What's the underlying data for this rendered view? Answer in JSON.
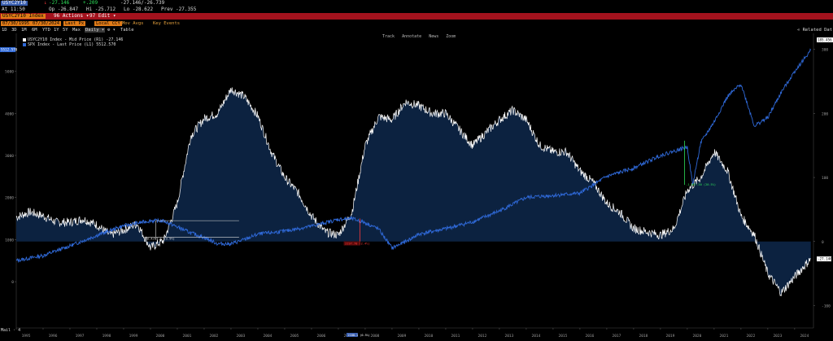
{
  "header": {
    "ticker": "USYC2Y10",
    "last_arrow": "↓",
    "last": "-27.146",
    "change": "+.209",
    "bid_ask": "-27.146/-26.739",
    "time": "At 11:50",
    "open": "Op -26.847",
    "high": "Hi -25.712",
    "low": "Lo -28.622",
    "prev": "Prev -27.355"
  },
  "actions_bar": {
    "index_tag": "USYC2Y10 Index",
    "actions": "96 Actions ▾",
    "edit": "97 Edit ▾"
  },
  "date_bar": {
    "start_date": "07/30/1995",
    "end_date": "07/30/2024",
    "last_px": "Last Px",
    "local_ccy": "Local CCY",
    "mov_avgs": "Mov Avgs",
    "key_events": "Key Events"
  },
  "range_bar": {
    "ranges": [
      "1D",
      "3D",
      "1M",
      "6M",
      "YTD",
      "1Y",
      "5Y",
      "Max",
      "Daily ▾"
    ],
    "selected": "Daily ▾",
    "table": "Table",
    "related": "« Related Dat"
  },
  "toolbar": {
    "track": "Track",
    "annotate": "Annotate",
    "news": "News",
    "zoom": "Zoom"
  },
  "legend": {
    "series1": "USYC2Y10 Index - Mid Price (R1)   -27.146",
    "series2": "SPX Index - Last Price (L1)          5512.570"
  },
  "annotations": {
    "a1": "40.4/85.1 (3.9%)",
    "a2": "2197.70 (2.4%)",
    "a3": "2100.1 (0.5%)",
    "a4": "-1,097.30 (20.5%)"
  },
  "bottom_tag": "Mail  · 4",
  "colors": {
    "spread_fill": "#0c2240",
    "spread_line": "#ffffff",
    "spx_line": "#2f69d8",
    "grid": "#1a1a1a",
    "axis_text": "#9a9a9a",
    "green": "#2ee05a",
    "red": "#ff3b3b",
    "orange": "#e07b18"
  },
  "chart_data": {
    "type": "line",
    "x_labels": [
      "1995",
      "1996",
      "1997",
      "1998",
      "1999",
      "2000",
      "2001",
      "2002",
      "2003",
      "2004",
      "2005",
      "2006",
      "2007",
      "2008",
      "2009",
      "2010",
      "2011",
      "2012",
      "2013",
      "2014",
      "2015",
      "2016",
      "2017",
      "2018",
      "2019",
      "2020",
      "2021",
      "2022",
      "2023",
      "2024"
    ],
    "left_axis_ticks": [
      "5000",
      "4000",
      "3000",
      "2000",
      "1000",
      "0"
    ],
    "left_axis_top_label": "5512.570",
    "right_axis_ticks": [
      "300",
      "200",
      "100",
      "0",
      "-100"
    ],
    "right_axis_top_label": "185.456",
    "right_axis_last_label": "-27.146",
    "series": [
      {
        "name": "USYC2Y10 Index - Mid Price (R1)",
        "axis": "right",
        "x": [
          1995.0,
          1995.5,
          1996.0,
          1996.5,
          1997.0,
          1997.5,
          1998.0,
          1998.5,
          1999.0,
          1999.5,
          2000.0,
          2000.5,
          2001.0,
          2001.5,
          2002.0,
          2002.5,
          2003.0,
          2003.5,
          2004.0,
          2004.5,
          2005.0,
          2005.5,
          2006.0,
          2006.5,
          2007.0,
          2007.5,
          2008.0,
          2008.5,
          2009.0,
          2009.5,
          2010.0,
          2010.5,
          2011.0,
          2011.5,
          2012.0,
          2012.5,
          2013.0,
          2013.5,
          2014.0,
          2014.5,
          2015.0,
          2015.5,
          2016.0,
          2016.5,
          2017.0,
          2017.5,
          2018.0,
          2018.5,
          2019.0,
          2019.5,
          2020.0,
          2020.5,
          2021.0,
          2021.5,
          2022.0,
          2022.5,
          2023.0,
          2023.5,
          2024.0,
          2024.6
        ],
        "y": [
          38,
          46,
          40,
          30,
          30,
          35,
          26,
          10,
          18,
          28,
          -10,
          2,
          60,
          165,
          192,
          200,
          238,
          226,
          196,
          140,
          100,
          76,
          40,
          15,
          10,
          45,
          150,
          195,
          190,
          218,
          212,
          200,
          200,
          175,
          150,
          170,
          190,
          205,
          190,
          150,
          140,
          140,
          110,
          92,
          60,
          45,
          20,
          15,
          10,
          20,
          80,
          100,
          140,
          110,
          40,
          10,
          -50,
          -80,
          -55,
          -27
        ]
      },
      {
        "name": "SPX Index - Last Price (L1)",
        "axis": "left",
        "x": [
          1995.0,
          1996.0,
          1997.0,
          1998.0,
          1999.0,
          2000.0,
          2000.5,
          2001.0,
          2001.5,
          2002.0,
          2002.5,
          2003.0,
          2003.5,
          2004.0,
          2005.0,
          2006.0,
          2007.0,
          2007.5,
          2008.0,
          2008.5,
          2009.0,
          2009.5,
          2010.0,
          2011.0,
          2012.0,
          2013.0,
          2014.0,
          2015.0,
          2016.0,
          2017.0,
          2018.0,
          2019.0,
          2020.0,
          2020.2,
          2020.5,
          2021.0,
          2021.5,
          2022.0,
          2022.5,
          2023.0,
          2023.5,
          2024.0,
          2024.6
        ],
        "y": [
          500,
          620,
          850,
          1100,
          1330,
          1450,
          1440,
          1300,
          1160,
          1050,
          900,
          900,
          1000,
          1130,
          1200,
          1320,
          1480,
          1500,
          1400,
          1250,
          800,
          950,
          1130,
          1260,
          1420,
          1680,
          2000,
          2050,
          2100,
          2500,
          2700,
          3000,
          3200,
          2300,
          3300,
          3800,
          4400,
          4700,
          3700,
          3900,
          4500,
          5000,
          5500
        ]
      }
    ]
  }
}
